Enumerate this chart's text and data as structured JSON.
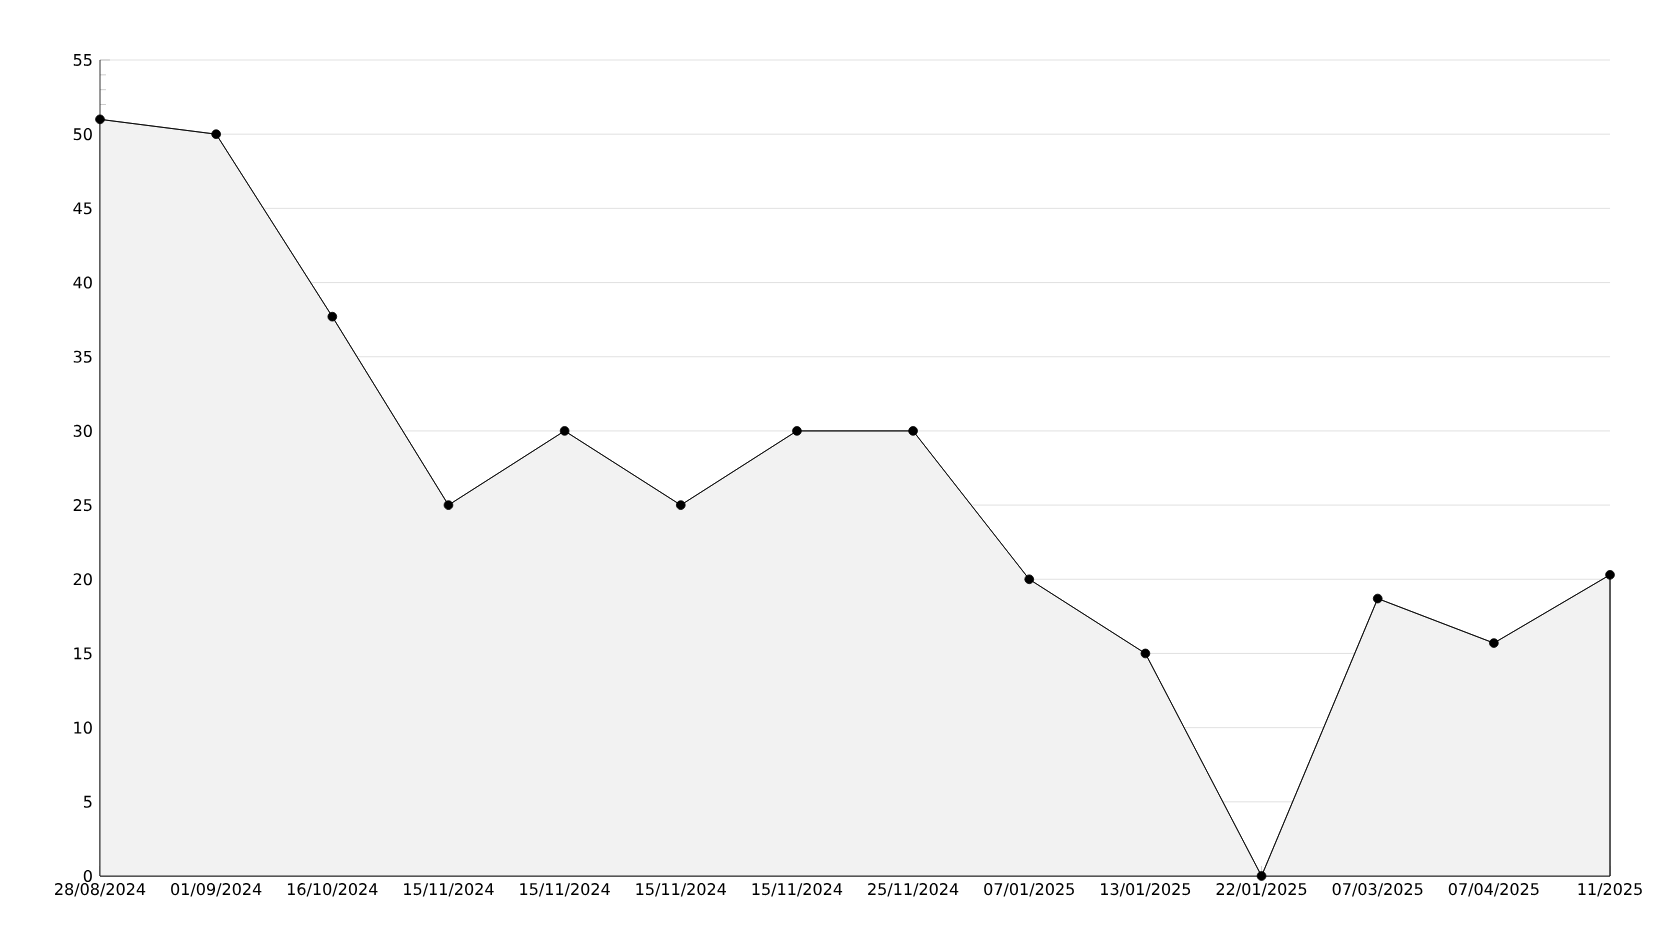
{
  "chart_data": {
    "type": "area",
    "categories": [
      "28/08/2024",
      "01/09/2024",
      "16/10/2024",
      "15/11/2024",
      "15/11/2024",
      "15/11/2024",
      "15/11/2024",
      "25/11/2024",
      "07/01/2025",
      "13/01/2025",
      "22/01/2025",
      "07/03/2025",
      "07/04/2025",
      "11/2025"
    ],
    "series": [
      {
        "color": "#000000",
        "values": [
          51,
          50,
          37.7,
          25,
          30,
          25,
          30,
          30,
          20,
          15,
          0,
          18.7,
          15.7,
          20.3
        ]
      }
    ],
    "ylim": [
      0,
      55
    ],
    "yticks": [
      0,
      5,
      10,
      15,
      20,
      25,
      30,
      35,
      40,
      45,
      50,
      55
    ],
    "grid": "y",
    "marker": "circle",
    "line_style": "solid"
  }
}
